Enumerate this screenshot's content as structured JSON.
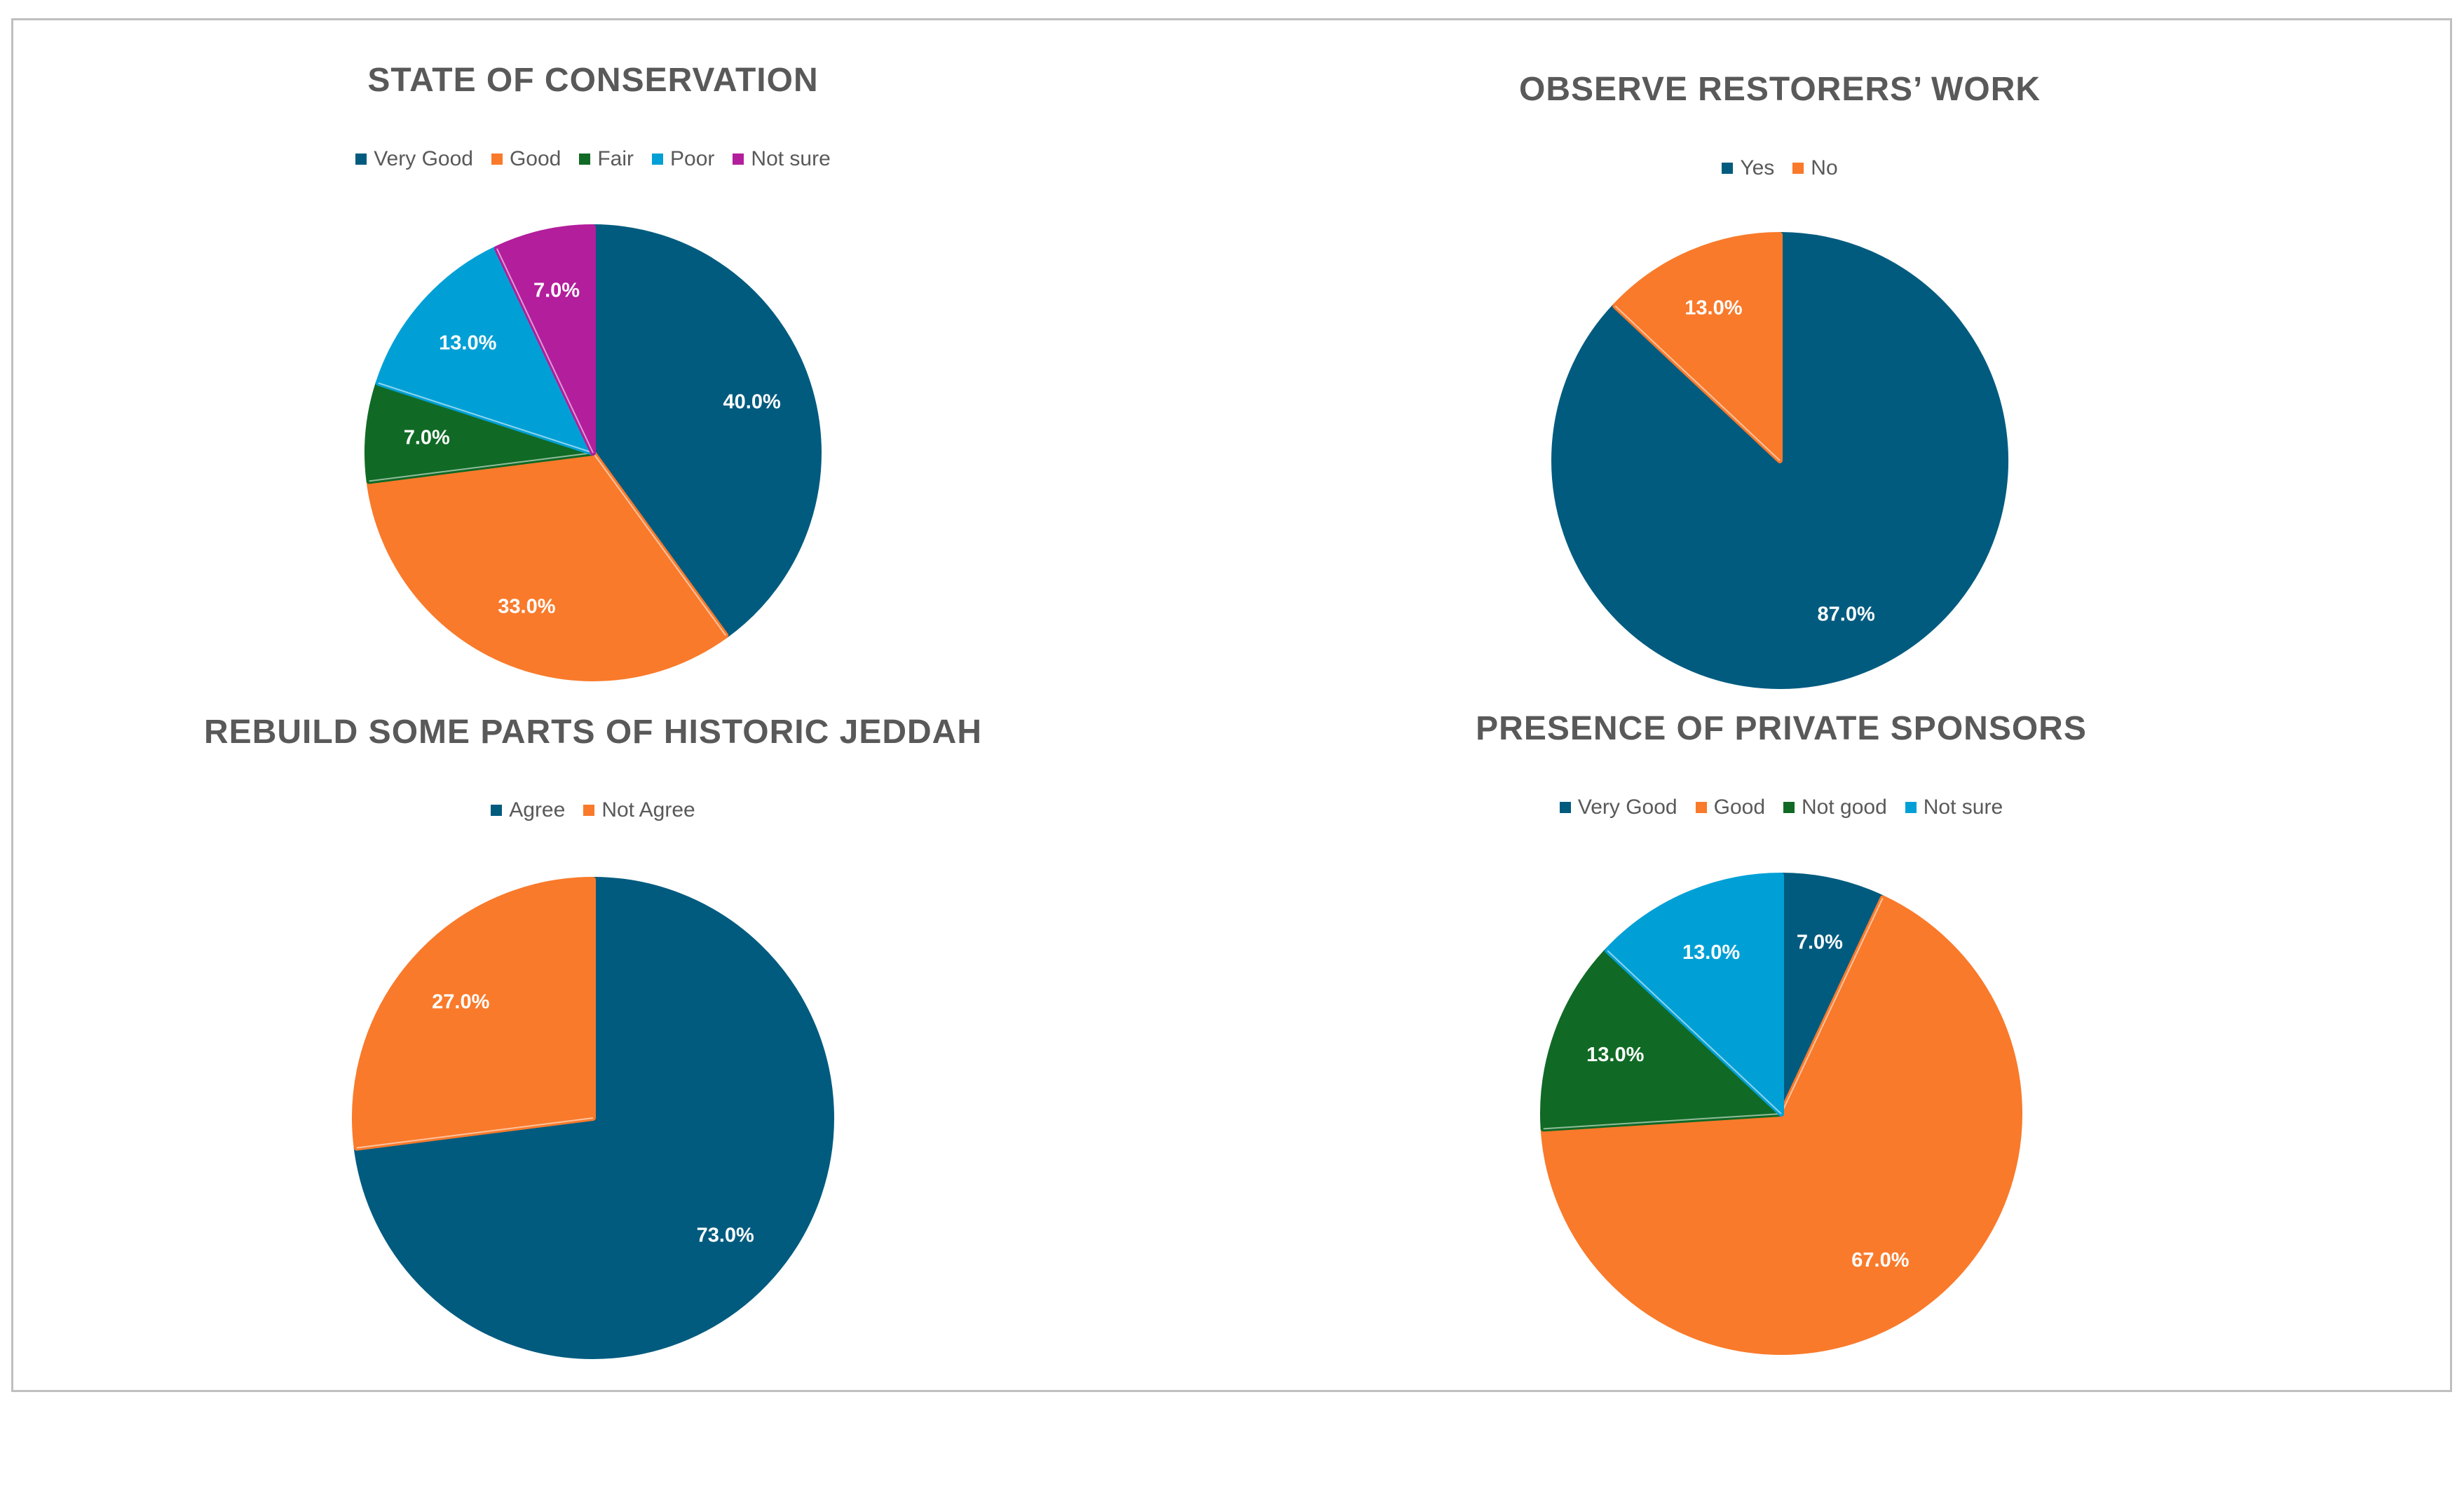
{
  "chart_data": [
    {
      "type": "pie",
      "title": "STATE OF CONSERVATION",
      "categories": [
        "Very Good",
        "Good",
        "Fair",
        "Poor",
        "Not sure"
      ],
      "values": [
        40.0,
        33.0,
        7.0,
        13.0,
        7.0
      ],
      "labels": [
        "40.0%",
        "33.0%",
        "7.0%",
        "13.0%",
        "7.0%"
      ],
      "colors": [
        "#005b7f",
        "#f97a2b",
        "#106a25",
        "#00a0d6",
        "#b31e9c"
      ],
      "legend_position": "top"
    },
    {
      "type": "pie",
      "title": "OBSERVE RESTORERS’ WORK",
      "categories": [
        "Yes",
        "No"
      ],
      "values": [
        87.0,
        13.0
      ],
      "labels": [
        "87.0%",
        "13.0%"
      ],
      "colors": [
        "#005b7f",
        "#f97a2b"
      ],
      "legend_position": "top"
    },
    {
      "type": "pie",
      "title": "REBUILD SOME PARTS OF HISTORIC JEDDAH",
      "categories": [
        "Agree",
        "Not Agree"
      ],
      "values": [
        73.0,
        27.0
      ],
      "labels": [
        "73.0%",
        "27.0%"
      ],
      "colors": [
        "#005b7f",
        "#f97a2b"
      ],
      "legend_position": "top"
    },
    {
      "type": "pie",
      "title": "PRESENCE OF PRIVATE SPONSORS",
      "categories": [
        "Very Good",
        "Good",
        "Not good",
        "Not sure"
      ],
      "values": [
        7.0,
        67.0,
        13.0,
        13.0
      ],
      "labels": [
        "7.0%",
        "67.0%",
        "13.0%",
        "13.0%"
      ],
      "colors": [
        "#005b7f",
        "#f97a2b",
        "#106a25",
        "#00a0d6"
      ],
      "legend_position": "top"
    }
  ]
}
